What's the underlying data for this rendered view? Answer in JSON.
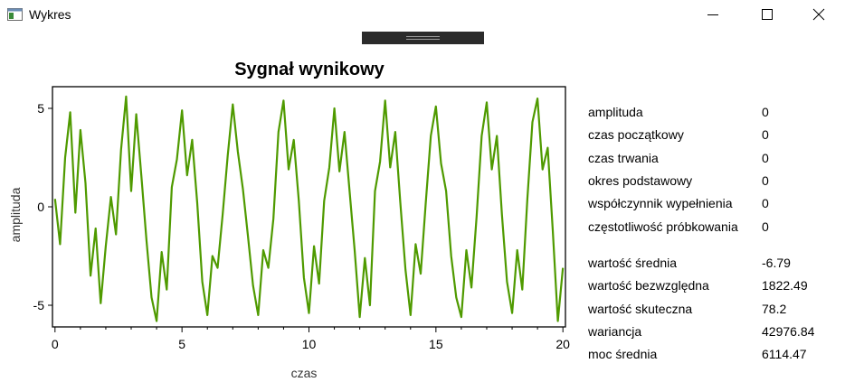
{
  "window": {
    "title": "Wykres",
    "accent": "#4f9a00"
  },
  "chart_data": {
    "type": "line",
    "title": "Sygnał wynikowy",
    "xlabel": "czas",
    "ylabel": "amplituda",
    "xlim": [
      -0.1,
      20.1
    ],
    "ylim": [
      -6.1,
      6.1
    ],
    "xticks": [
      0,
      5,
      10,
      15,
      20
    ],
    "xtick_labels": [
      "0",
      "5",
      "10",
      "15",
      "20"
    ],
    "yticks": [
      -5,
      0,
      5
    ],
    "ytick_labels": [
      "-5",
      "0",
      "5"
    ],
    "grid": false,
    "legend": "none",
    "series": [
      {
        "color": "#4f9a00",
        "x": [
          0.0,
          0.2,
          0.4,
          0.6,
          0.8,
          1.0,
          1.2,
          1.4,
          1.6,
          1.8,
          2.0,
          2.2,
          2.4,
          2.6,
          2.8,
          3.0,
          3.2,
          3.4,
          3.6,
          3.8,
          4.0,
          4.2,
          4.4,
          4.6,
          4.8,
          5.0,
          5.2,
          5.4,
          5.6,
          5.8,
          6.0,
          6.2,
          6.4,
          6.6,
          6.8,
          7.0,
          7.2,
          7.4,
          7.6,
          7.8,
          8.0,
          8.2,
          8.4,
          8.6,
          8.8,
          9.0,
          9.2,
          9.4,
          9.6,
          9.8,
          10.0,
          10.2,
          10.4,
          10.6,
          10.8,
          11.0,
          11.2,
          11.4,
          11.6,
          11.8,
          12.0,
          12.2,
          12.4,
          12.6,
          12.8,
          13.0,
          13.2,
          13.4,
          13.6,
          13.8,
          14.0,
          14.2,
          14.4,
          14.6,
          14.8,
          15.0,
          15.2,
          15.4,
          15.6,
          15.8,
          16.0,
          16.2,
          16.4,
          16.6,
          16.8,
          17.0,
          17.2,
          17.4,
          17.6,
          17.8,
          18.0,
          18.2,
          18.4,
          18.6,
          18.8,
          19.0,
          19.2,
          19.4,
          19.6,
          19.8,
          20.0
        ],
        "y": [
          0.4,
          -1.9,
          2.5,
          4.8,
          -0.3,
          3.9,
          1.2,
          -3.5,
          -1.1,
          -4.9,
          -2.0,
          0.5,
          -1.4,
          2.9,
          5.6,
          0.8,
          4.7,
          1.6,
          -1.7,
          -4.6,
          -5.8,
          -2.3,
          -4.2,
          1.0,
          2.4,
          4.9,
          1.6,
          3.4,
          0.2,
          -3.8,
          -5.5,
          -2.5,
          -3.1,
          -0.4,
          2.6,
          5.2,
          2.8,
          0.9,
          -1.5,
          -4.0,
          -5.5,
          -2.2,
          -3.1,
          -0.6,
          3.8,
          5.4,
          1.9,
          3.4,
          0.3,
          -3.6,
          -5.4,
          -2.0,
          -3.9,
          0.3,
          2.0,
          5.0,
          1.8,
          3.8,
          0.8,
          -2.2,
          -5.6,
          -2.6,
          -5.0,
          0.8,
          2.3,
          5.4,
          2.0,
          3.8,
          0.2,
          -3.2,
          -5.5,
          -1.9,
          -3.4,
          0.2,
          3.6,
          5.1,
          2.2,
          0.8,
          -2.5,
          -4.6,
          -5.6,
          -2.2,
          -4.1,
          -0.5,
          3.6,
          5.3,
          1.9,
          3.6,
          -0.4,
          -3.8,
          -5.4,
          -2.2,
          -4.2,
          0.4,
          4.3,
          5.5,
          1.9,
          3.0,
          -1.2,
          -5.8,
          -3.1
        ]
      }
    ]
  },
  "stats": {
    "group1": [
      {
        "label": "amplituda",
        "value": "0"
      },
      {
        "label": "czas początkowy",
        "value": "0"
      },
      {
        "label": "czas trwania",
        "value": "0"
      },
      {
        "label": "okres podstawowy",
        "value": "0"
      },
      {
        "label": "współczynnik wypełnienia",
        "value": "0"
      },
      {
        "label": "częstotliwość próbkowania",
        "value": "0"
      }
    ],
    "group2": [
      {
        "label": "wartość średnia",
        "value": "-6.79"
      },
      {
        "label": "wartość bezwzględna",
        "value": "1822.49"
      },
      {
        "label": "wartość skuteczna",
        "value": "78.2"
      },
      {
        "label": "wariancja",
        "value": "42976.84"
      },
      {
        "label": "moc średnia",
        "value": "6114.47"
      }
    ]
  }
}
